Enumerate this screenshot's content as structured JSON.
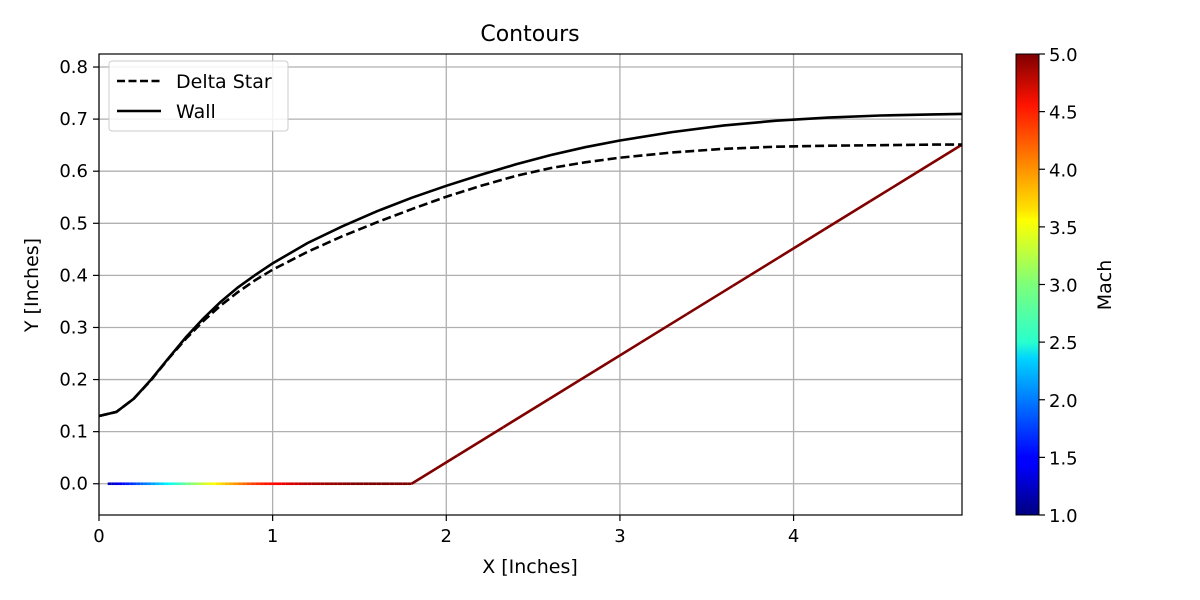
{
  "chart_data": {
    "type": "line",
    "title": "Contours",
    "xlabel": "X [Inches]",
    "ylabel": "Y [Inches]",
    "xlim": [
      0,
      4.97
    ],
    "ylim": [
      -0.06,
      0.825
    ],
    "xticks": [
      0,
      1,
      2,
      3,
      4
    ],
    "yticks": [
      0.0,
      0.1,
      0.2,
      0.3,
      0.4,
      0.5,
      0.6,
      0.7,
      0.8
    ],
    "grid": true,
    "legend_position": "top-left",
    "series": [
      {
        "name": "Delta Star",
        "style": "dashed",
        "color": "#000000",
        "x": [
          0,
          0.1,
          0.2,
          0.3,
          0.4,
          0.5,
          0.6,
          0.7,
          0.8,
          0.9,
          1.0,
          1.2,
          1.4,
          1.6,
          1.8,
          2.0,
          2.2,
          2.4,
          2.6,
          2.8,
          3.0,
          3.3,
          3.6,
          3.9,
          4.2,
          4.5,
          4.8,
          4.97
        ],
        "y": [
          0.13,
          0.138,
          0.163,
          0.199,
          0.24,
          0.278,
          0.312,
          0.342,
          0.368,
          0.391,
          0.411,
          0.445,
          0.475,
          0.502,
          0.527,
          0.551,
          0.572,
          0.591,
          0.606,
          0.617,
          0.626,
          0.636,
          0.643,
          0.647,
          0.649,
          0.65,
          0.651,
          0.651
        ]
      },
      {
        "name": "Wall",
        "style": "solid",
        "color": "#000000",
        "x": [
          0,
          0.1,
          0.2,
          0.3,
          0.4,
          0.5,
          0.6,
          0.7,
          0.8,
          0.9,
          1.0,
          1.2,
          1.4,
          1.6,
          1.8,
          2.0,
          2.2,
          2.4,
          2.6,
          2.8,
          3.0,
          3.3,
          3.6,
          3.9,
          4.2,
          4.5,
          4.8,
          4.97
        ],
        "y": [
          0.13,
          0.138,
          0.163,
          0.2,
          0.241,
          0.281,
          0.317,
          0.349,
          0.377,
          0.401,
          0.423,
          0.462,
          0.494,
          0.523,
          0.549,
          0.572,
          0.593,
          0.613,
          0.631,
          0.646,
          0.659,
          0.675,
          0.688,
          0.697,
          0.703,
          0.707,
          0.709,
          0.71
        ]
      }
    ],
    "mach_line": {
      "x": [
        0.05,
        0.3,
        0.6,
        0.9,
        1.2,
        1.5,
        1.8,
        4.97
      ],
      "y": [
        0,
        0,
        0,
        0,
        0,
        0,
        0,
        0.651
      ],
      "mach": [
        1.2,
        2.1,
        3.3,
        4.3,
        4.8,
        5.0,
        5.0,
        5.0
      ]
    },
    "colorbar": {
      "label": "Mach",
      "min": 1.0,
      "max": 5.0,
      "ticks": [
        1.0,
        1.5,
        2.0,
        2.5,
        3.0,
        3.5,
        4.0,
        4.5,
        5.0
      ],
      "colormap": "jet"
    }
  }
}
